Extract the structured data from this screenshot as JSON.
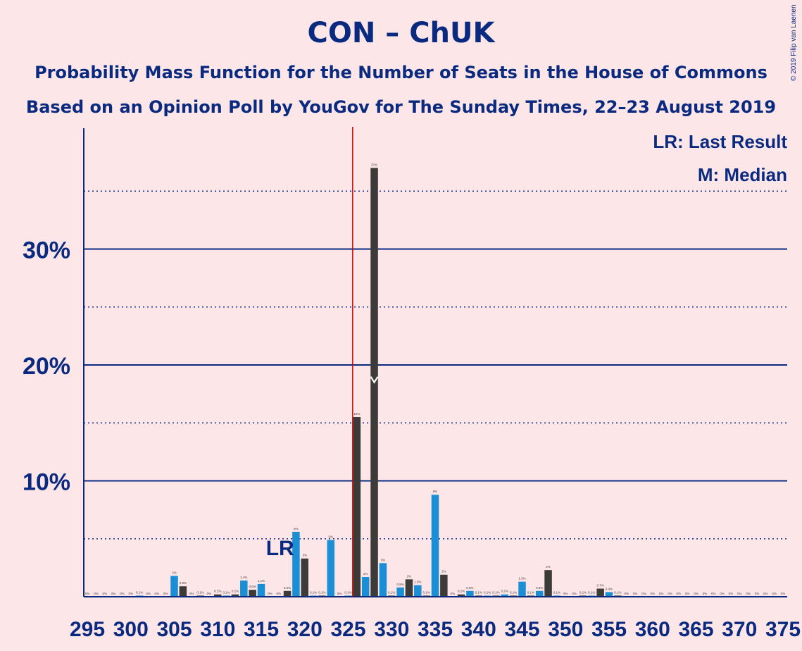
{
  "chart_data": {
    "type": "bar",
    "title": "CON – ChUK",
    "subtitle": "Probability Mass Function for the Number of Seats in the House of Commons",
    "subtitle2": "Based on an Opinion Poll by YouGov for The Sunday Times, 22–23 August 2019",
    "copyright": "© 2019 Filip van Laenen",
    "legend": [
      "LR: Last Result",
      "M: Median"
    ],
    "last_result_label": "LR",
    "median_label": "M",
    "x_ticks": [
      "295",
      "300",
      "305",
      "310",
      "315",
      "320",
      "325",
      "330",
      "335",
      "340",
      "345",
      "350",
      "355",
      "360",
      "365",
      "370",
      "375"
    ],
    "y_ticks": [
      "10%",
      "20%",
      "30%"
    ],
    "ylim": [
      0,
      40
    ],
    "last_result_seat": 317,
    "median_seat": 328,
    "majority_seat": 326,
    "seats": [
      295,
      296,
      297,
      298,
      299,
      300,
      301,
      302,
      303,
      304,
      305,
      306,
      307,
      308,
      309,
      310,
      311,
      312,
      313,
      314,
      315,
      316,
      317,
      318,
      319,
      320,
      321,
      322,
      323,
      324,
      325,
      326,
      327,
      328,
      329,
      330,
      331,
      332,
      333,
      334,
      335,
      336,
      337,
      338,
      339,
      340,
      341,
      342,
      343,
      344,
      345,
      346,
      347,
      348,
      349,
      350,
      351,
      352,
      353,
      354,
      355,
      356,
      357,
      358,
      359,
      360,
      361,
      362,
      363,
      364,
      365,
      366,
      367,
      368,
      369,
      370,
      371,
      372,
      373,
      374,
      375
    ],
    "values": [
      0,
      0,
      0,
      0,
      0,
      0,
      0.1,
      0,
      0,
      0,
      1.8,
      0.9,
      0,
      0.1,
      0,
      0.2,
      0.1,
      0.2,
      1.4,
      0.6,
      1.1,
      0,
      0,
      0.5,
      5.6,
      3.3,
      0.1,
      0.1,
      4.9,
      0,
      0.1,
      15.5,
      1.7,
      37,
      2.9,
      0.1,
      0.8,
      1.5,
      1.0,
      0.1,
      8.8,
      1.9,
      0,
      0.2,
      0.5,
      0.1,
      0.1,
      0.1,
      0.2,
      0.1,
      1.3,
      0.1,
      0.5,
      2.3,
      0.1,
      0,
      0,
      0.1,
      0.1,
      0.7,
      0.4,
      0.1,
      0,
      0,
      0,
      0,
      0,
      0,
      0,
      0,
      0,
      0,
      0,
      0,
      0,
      0,
      0,
      0,
      0,
      0,
      0
    ],
    "labels": [
      "0%",
      "0%",
      "0%",
      "0%",
      "0%",
      "0%",
      "0.1%",
      "0%",
      "0%",
      "0%",
      "2%",
      "0.9%",
      "0%",
      "0.1%",
      "0%",
      "0.2%",
      "0.1%",
      "0.2%",
      "1.4%",
      "0.6%",
      "1.1%",
      "0%",
      "0%",
      "0.5%",
      "6%",
      "3%",
      "0.1%",
      "0.1%",
      "5%",
      "0%",
      "0.1%",
      "16%",
      "2%",
      "37%",
      "3%",
      "0.1%",
      "0.8%",
      "2%",
      "1.0%",
      "0.1%",
      "9%",
      "2%",
      "0%",
      "0.2%",
      "0.5%",
      "0.1%",
      "0.1%",
      "0.1%",
      "0.2%",
      "0.1%",
      "1.3%",
      "0.1%",
      "0.5%",
      "2%",
      "0.1%",
      "0%",
      "0%",
      "0.1%",
      "0.1%",
      "0.7%",
      "0.4%",
      "0.1%",
      "0%",
      "0%",
      "0%",
      "0%",
      "0%",
      "0%",
      "0%",
      "0%",
      "0%",
      "0%",
      "0%",
      "0%",
      "0%",
      "0%",
      "0%",
      "0%",
      "0%",
      "0%",
      "0%"
    ],
    "colors": {
      "blue_bar": "#1a8fd6",
      "dark_bar": "#3d3b39",
      "axis": "#0a2a80",
      "majority_line": "#cc0000",
      "background": "#fde6e8"
    }
  }
}
